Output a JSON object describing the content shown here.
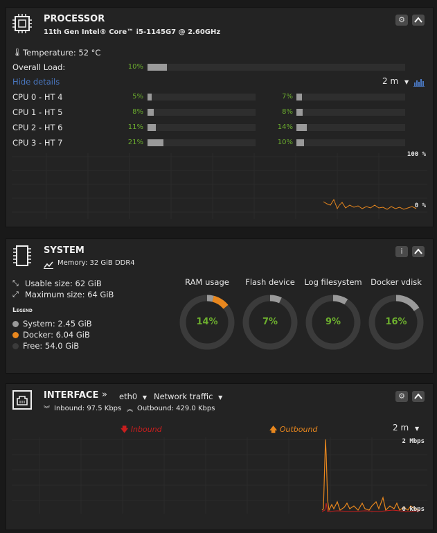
{
  "processor": {
    "title": "PROCESSOR",
    "cpu_model": "11th Gen Intel® Core™ i5-1145G7 @ 2.60GHz",
    "temperature": "Temperature: 52 °C",
    "overall_label": "Overall Load:",
    "overall_pct": "10%",
    "overall_value": 0.1,
    "hide_details": "Hide details",
    "interval": "2 m",
    "cpus": [
      {
        "label": "CPU 0 - HT 4",
        "a_pct": "5%",
        "a": 0.05,
        "b_pct": "7%",
        "b": 0.07
      },
      {
        "label": "CPU 1 - HT 5",
        "a_pct": "8%",
        "a": 0.08,
        "b_pct": "8%",
        "b": 0.08
      },
      {
        "label": "CPU 2 - HT 6",
        "a_pct": "11%",
        "a": 0.11,
        "b_pct": "14%",
        "b": 0.14
      },
      {
        "label": "CPU 3 - HT 7",
        "a_pct": "21%",
        "a": 0.21,
        "b_pct": "10%",
        "b": 0.1
      }
    ],
    "graph_top": "100 %",
    "graph_bottom": "0 %"
  },
  "system": {
    "title": "SYSTEM",
    "memory": "Memory: 32 GiB DDR4",
    "usable": "Usable size: 62 GiB",
    "maximum": "Maximum size: 64 GiB",
    "legend_title": "Legend",
    "legend": [
      {
        "label": "System: 2.45 GiB",
        "color": "#9a9a9a"
      },
      {
        "label": "Docker: 6.04 GiB",
        "color": "#e8871e"
      },
      {
        "label": "Free: 54.0 GiB",
        "color": "#3b3b3b"
      }
    ],
    "donuts": [
      {
        "label": "RAM usage",
        "pct": "14%",
        "system": 0.04,
        "docker": 0.1
      },
      {
        "label": "Flash device",
        "pct": "7%",
        "system": 0.07,
        "docker": 0
      },
      {
        "label": "Log filesystem",
        "pct": "9%",
        "system": 0.09,
        "docker": 0
      },
      {
        "label": "Docker vdisk",
        "pct": "16%",
        "system": 0.16,
        "docker": 0
      }
    ]
  },
  "interface": {
    "title": "INTERFACE",
    "iface": "eth0",
    "mode": "Network traffic",
    "inbound": "Inbound: 97.5 Kbps",
    "outbound": "Outbound: 429.0 Kbps",
    "legend_in": "Inbound",
    "legend_out": "Outbound",
    "interval": "2 m",
    "graph_top": "2 Mbps",
    "graph_bottom": "0 kbps"
  },
  "colors": {
    "green": "#6cae2e",
    "orange": "#e8871e",
    "red": "#c81e1e",
    "blue": "#4a78c2"
  }
}
